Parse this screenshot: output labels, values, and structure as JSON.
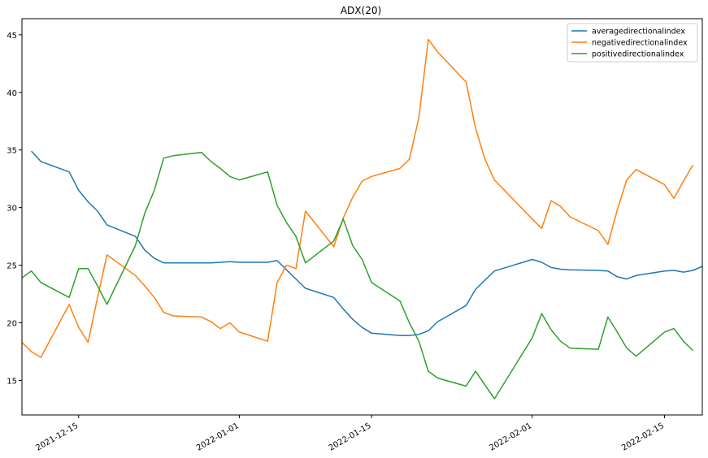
{
  "chart_data": {
    "type": "line",
    "title": "ADX(20)",
    "xlabel": "",
    "ylabel": "",
    "xlim": [
      "2021-12-09",
      "2022-02-19"
    ],
    "ylim": [
      12,
      46.4
    ],
    "y_ticks": [
      15,
      20,
      25,
      30,
      35,
      40,
      45
    ],
    "x_ticks": [
      "2021-12-15",
      "2022-01-01",
      "2022-01-15",
      "2022-02-01",
      "2022-02-15"
    ],
    "grid": false,
    "legend_position": "top-right",
    "x": [
      "2021-12-09",
      "2021-12-10",
      "2021-12-11",
      "2021-12-14",
      "2021-12-15",
      "2021-12-16",
      "2021-12-17",
      "2021-12-18",
      "2021-12-21",
      "2021-12-22",
      "2021-12-23",
      "2021-12-24",
      "2021-12-25",
      "2021-12-28",
      "2021-12-29",
      "2021-12-30",
      "2021-12-31",
      "2022-01-01",
      "2022-01-04",
      "2022-01-05",
      "2022-01-06",
      "2022-01-07",
      "2022-01-08",
      "2022-01-11",
      "2022-01-12",
      "2022-01-13",
      "2022-01-14",
      "2022-01-15",
      "2022-01-18",
      "2022-01-19",
      "2022-01-20",
      "2022-01-21",
      "2022-01-22",
      "2022-01-25",
      "2022-01-26",
      "2022-01-27",
      "2022-01-28",
      "2022-02-01",
      "2022-02-02",
      "2022-02-03",
      "2022-02-04",
      "2022-02-05",
      "2022-02-08",
      "2022-02-09",
      "2022-02-10",
      "2022-02-11",
      "2022-02-12",
      "2022-02-15",
      "2022-02-16",
      "2022-02-17",
      "2022-02-18",
      "2022-02-19"
    ],
    "series": [
      {
        "name": "averagedirectionalindex",
        "color": "#1f77b4",
        "values": [
          null,
          34.9,
          34.0,
          33.1,
          31.5,
          30.5,
          29.7,
          28.5,
          27.5,
          26.3,
          25.6,
          25.2,
          25.2,
          25.2,
          25.2,
          25.25,
          25.3,
          25.25,
          25.25,
          25.4,
          24.6,
          23.8,
          23.0,
          22.2,
          21.2,
          20.3,
          19.6,
          19.1,
          18.9,
          18.9,
          19.0,
          19.3,
          20.1,
          21.5,
          22.9,
          23.7,
          24.5,
          25.5,
          25.25,
          24.8,
          24.65,
          24.6,
          24.55,
          24.5,
          24.0,
          23.8,
          24.1,
          24.5,
          24.55,
          24.4,
          24.55,
          24.9
        ]
      },
      {
        "name": "negativedirectionalindex",
        "color": "#ff7f0e",
        "values": [
          18.3,
          17.5,
          17.0,
          21.6,
          19.6,
          18.3,
          22.2,
          25.9,
          24.1,
          23.2,
          22.2,
          20.9,
          20.6,
          20.5,
          20.1,
          19.5,
          20.0,
          19.2,
          18.4,
          23.5,
          25.0,
          24.7,
          29.7,
          26.6,
          29.1,
          30.9,
          32.3,
          32.7,
          33.4,
          34.2,
          37.8,
          44.6,
          43.5,
          40.9,
          36.9,
          34.2,
          32.4,
          29.0,
          28.2,
          30.6,
          30.1,
          29.2,
          28.0,
          26.8,
          29.8,
          32.4,
          33.3,
          32.0,
          30.8,
          32.3,
          33.7,
          null
        ]
      },
      {
        "name": "positivedirectionalindex",
        "color": "#2ca02c",
        "values": [
          23.9,
          24.5,
          23.5,
          22.2,
          24.7,
          24.7,
          23.2,
          21.6,
          26.7,
          29.5,
          31.5,
          34.3,
          34.5,
          34.8,
          34.0,
          33.4,
          32.7,
          32.4,
          33.1,
          30.2,
          28.7,
          27.5,
          25.2,
          27.1,
          29.0,
          26.7,
          25.5,
          23.5,
          21.9,
          20.0,
          18.4,
          15.8,
          15.2,
          14.5,
          15.8,
          14.6,
          13.4,
          18.7,
          20.8,
          19.4,
          18.4,
          17.8,
          17.7,
          20.5,
          19.2,
          17.8,
          17.1,
          19.2,
          19.5,
          18.4,
          17.6,
          null
        ]
      }
    ]
  }
}
